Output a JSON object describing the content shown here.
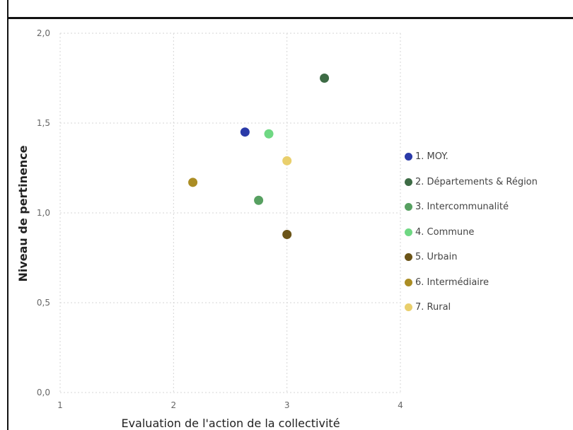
{
  "chart_data": {
    "type": "scatter",
    "title": "",
    "xlabel": "Evaluation de l'action de la collectivité",
    "ylabel": "Niveau de pertinence",
    "xlim": [
      1,
      4
    ],
    "ylim": [
      0,
      2
    ],
    "x_ticks": [
      1,
      2,
      3,
      4
    ],
    "x_tick_labels": [
      "1",
      "2",
      "3",
      "4"
    ],
    "y_ticks": [
      0,
      0.5,
      1,
      1.5,
      2
    ],
    "y_tick_labels": [
      "0,0",
      "0,5",
      "1,0",
      "1,5",
      "2,0"
    ],
    "grid": true,
    "legend_position": "right",
    "series": [
      {
        "name": "1. MOY.",
        "color": "#2a3aa8",
        "x": 2.63,
        "y": 1.45
      },
      {
        "name": "2. Départements & Région",
        "color": "#3d6b45",
        "x": 3.33,
        "y": 1.75
      },
      {
        "name": "3. Intercommunalité",
        "color": "#57a061",
        "x": 2.75,
        "y": 1.07
      },
      {
        "name": "4. Commune",
        "color": "#6fd883",
        "x": 2.84,
        "y": 1.44
      },
      {
        "name": "5. Urbain",
        "color": "#6b5418",
        "x": 3.0,
        "y": 0.88
      },
      {
        "name": "6. Intermédiaire",
        "color": "#ab8d24",
        "x": 2.17,
        "y": 1.17
      },
      {
        "name": "7. Rural",
        "color": "#e9cf6c",
        "x": 3.0,
        "y": 1.29
      }
    ]
  }
}
